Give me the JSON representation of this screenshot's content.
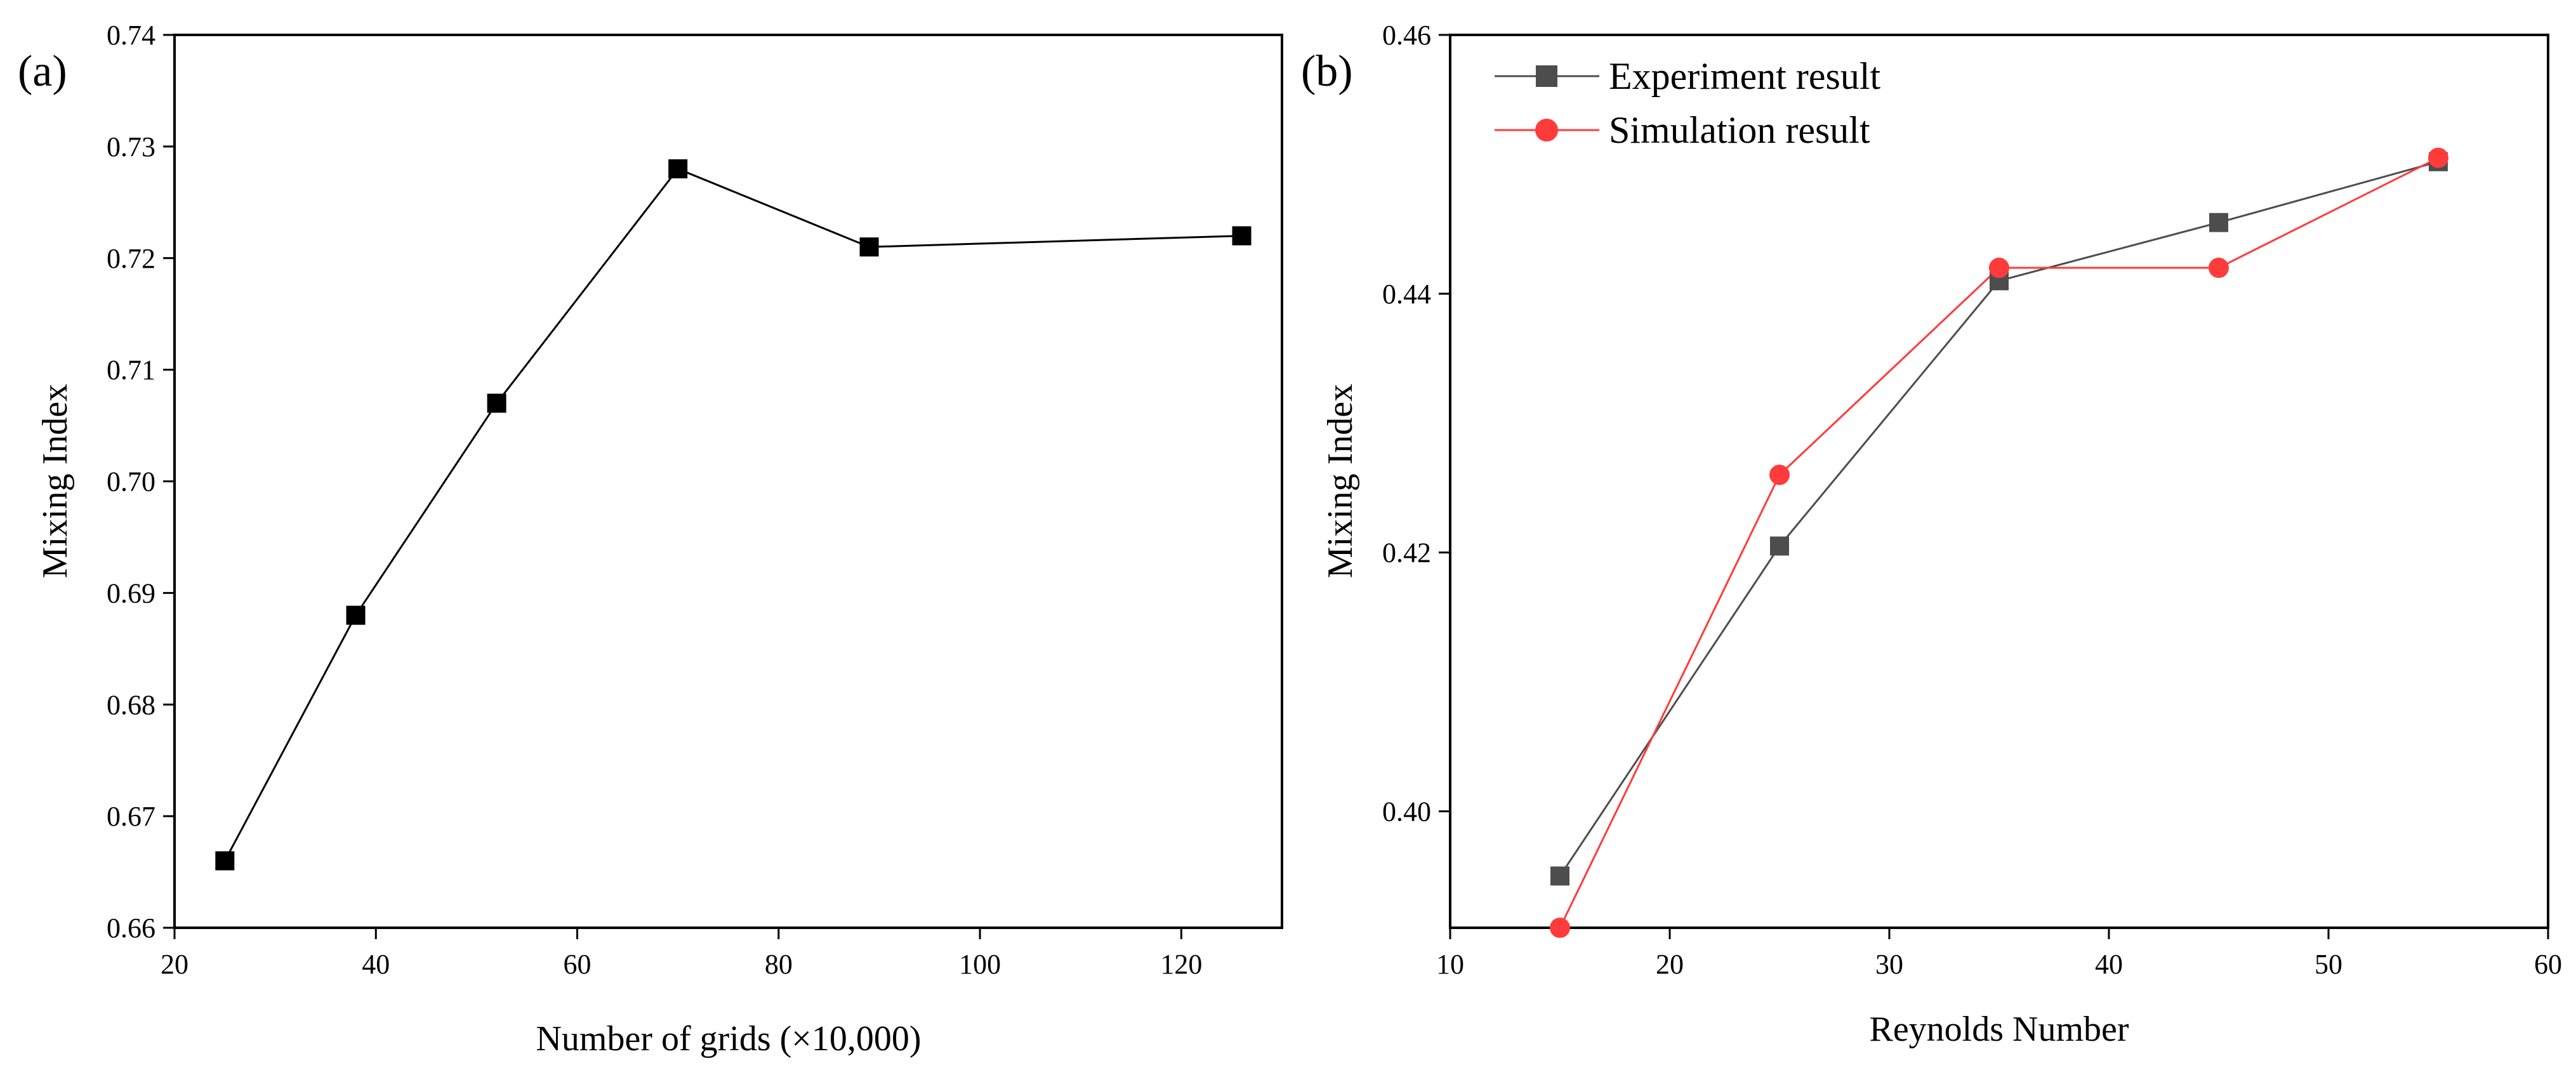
{
  "chart_data": [
    {
      "panel_label": "(a)",
      "type": "line",
      "title": "",
      "xlabel": "Number of grids (×10,000)",
      "ylabel": "Mixing Index",
      "xlim": [
        20,
        130
      ],
      "ylim": [
        0.66,
        0.74
      ],
      "xticks": [
        20,
        40,
        60,
        80,
        100,
        120
      ],
      "yticks": [
        0.66,
        0.67,
        0.68,
        0.69,
        0.7,
        0.71,
        0.72,
        0.73,
        0.74
      ],
      "xtick_labels": [
        "20",
        "40",
        "60",
        "80",
        "100",
        "120"
      ],
      "ytick_labels": [
        "0.66",
        "0.67",
        "0.68",
        "0.69",
        "0.70",
        "0.71",
        "0.72",
        "0.73",
        "0.74"
      ],
      "grid": false,
      "series": [
        {
          "name": "",
          "color": "#000000",
          "marker": "square",
          "x": [
            25,
            38,
            52,
            70,
            89,
            126
          ],
          "y": [
            0.666,
            0.688,
            0.707,
            0.728,
            0.721,
            0.722
          ]
        }
      ]
    },
    {
      "panel_label": "(b)",
      "type": "line",
      "title": "",
      "xlabel": "Reynolds Number",
      "ylabel": "Mixing Index",
      "xlim": [
        10,
        60
      ],
      "ylim": [
        0.391,
        0.46
      ],
      "xticks": [
        10,
        20,
        30,
        40,
        50,
        60
      ],
      "yticks": [
        0.4,
        0.42,
        0.44,
        0.46
      ],
      "xtick_labels": [
        "10",
        "20",
        "30",
        "40",
        "50",
        "60"
      ],
      "ytick_labels": [
        "0.40",
        "0.42",
        "0.44",
        "0.46"
      ],
      "grid": false,
      "legend_position": "top-left",
      "series": [
        {
          "name": "Experiment result",
          "color": "#4d4d4d",
          "marker": "square",
          "x": [
            15,
            25,
            35,
            45,
            55
          ],
          "y": [
            0.395,
            0.4205,
            0.441,
            0.4455,
            0.4502
          ]
        },
        {
          "name": "Simulation result",
          "color": "#ff3b3b",
          "marker": "circle",
          "x": [
            15,
            25,
            35,
            45,
            55
          ],
          "y": [
            0.391,
            0.426,
            0.442,
            0.442,
            0.4505
          ]
        }
      ]
    }
  ]
}
